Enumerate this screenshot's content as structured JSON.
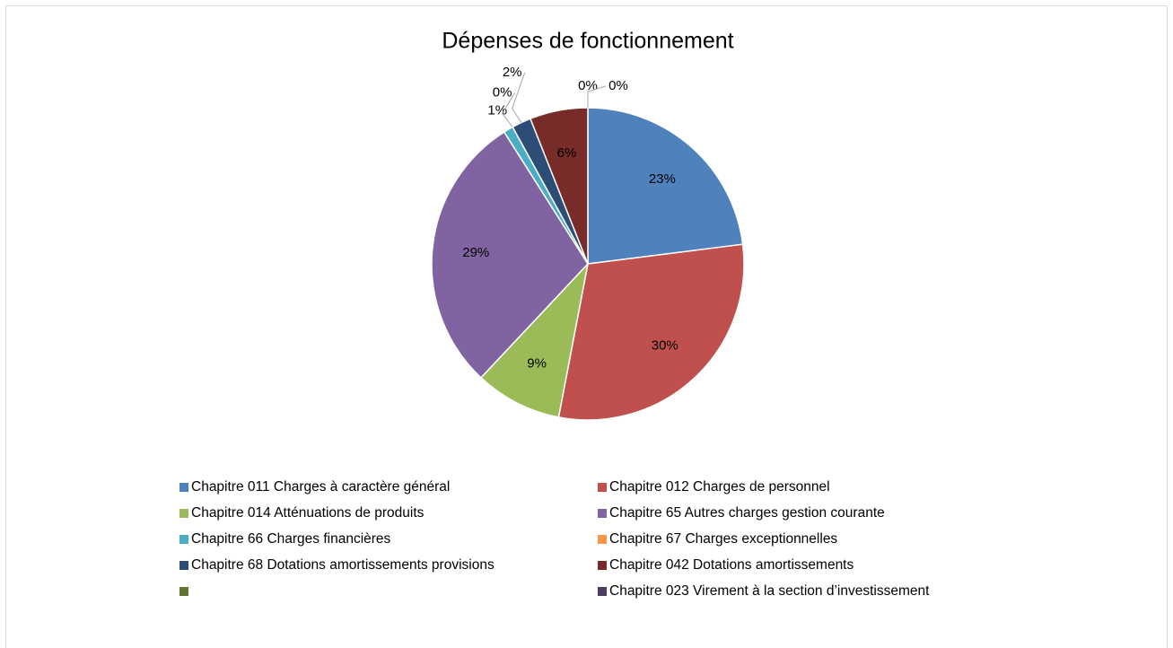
{
  "chart_data": {
    "type": "pie",
    "title": "Dépenses de fonctionnement",
    "categories": [
      "Chapitre 011 Charges à caractère général",
      "Chapitre 012 Charges de personnel",
      "Chapitre 014 Atténuations de produits",
      "Chapitre 65 Autres charges gestion courante",
      "Chapitre 66 Charges financières",
      "Chapitre 67 Charges exceptionnelles",
      "Chapitre 68 Dotations amortissements provisions",
      "Chapitre 042  Dotations amortissements",
      null,
      "Chapitre 023 Virement à la section d’investissement"
    ],
    "values": [
      23,
      30,
      9,
      29,
      1,
      0,
      2,
      6,
      0,
      0
    ],
    "value_labels": [
      "23%",
      "30%",
      "9%",
      "29%",
      "1%",
      "0%",
      "2%",
      "6%",
      "0%",
      "0%"
    ],
    "colors": [
      "#4f81bd",
      "#c0504d",
      "#9bbb59",
      "#8064a2",
      "#4bacc6",
      "#f79646",
      "#2c4d75",
      "#772c2a",
      "#5f7530",
      "#4d3b62"
    ],
    "legend": "bottom"
  }
}
